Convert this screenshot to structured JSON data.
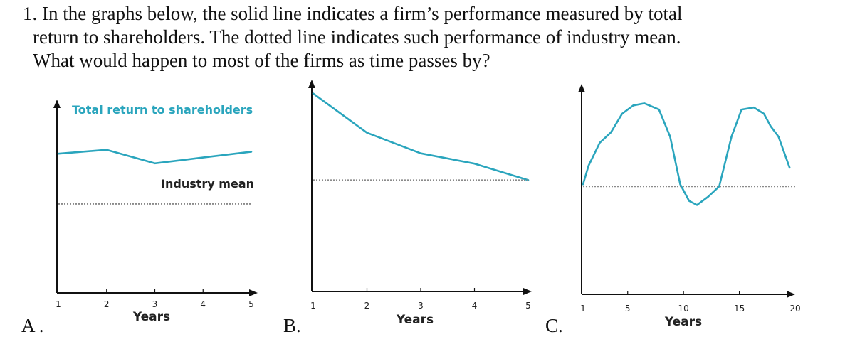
{
  "question": {
    "line1": "1. In the graphs below, the solid line indicates a firm’s performance measured by total",
    "line2": "return to shareholders. The dotted line indicates such performance of industry mean.",
    "line3": "What would happen to most of the firms as time passes by?"
  },
  "colors": {
    "firm_line": "#2aa5bd",
    "mean_line": "#8a8a8a",
    "axis": "#111111"
  },
  "chart_data": [
    {
      "panel_letter": "A .",
      "type": "line",
      "xlabel": "Years",
      "x_ticks": [
        1,
        2,
        3,
        4,
        5
      ],
      "xlim": [
        1,
        5
      ],
      "ylim": [
        0,
        10
      ],
      "series": [
        {
          "name": "Total return to shareholders",
          "style": "solid",
          "x": [
            1,
            2,
            3,
            4,
            5
          ],
          "y": [
            7.2,
            7.4,
            6.7,
            7.0,
            7.3
          ]
        },
        {
          "name": "Industry mean",
          "style": "dotted",
          "x": [
            1,
            5
          ],
          "y": [
            4.6,
            4.6
          ]
        }
      ]
    },
    {
      "panel_letter": "B.",
      "type": "line",
      "xlabel": "Years",
      "x_ticks": [
        1,
        2,
        3,
        4,
        5
      ],
      "xlim": [
        1,
        5
      ],
      "ylim": [
        0,
        10
      ],
      "series": [
        {
          "style": "solid",
          "x": [
            1,
            2,
            3,
            4,
            5
          ],
          "y": [
            9.6,
            7.7,
            6.7,
            6.2,
            5.4
          ]
        },
        {
          "style": "dotted",
          "x": [
            1,
            5
          ],
          "y": [
            5.4,
            5.4
          ]
        }
      ]
    },
    {
      "panel_letter": "C.",
      "type": "line",
      "xlabel": "Years",
      "x_ticks": [
        1,
        5,
        10,
        15,
        20
      ],
      "xlim": [
        1,
        20
      ],
      "ylim": [
        0,
        10
      ],
      "series": [
        {
          "style": "solid",
          "x": [
            1,
            1.5,
            2.5,
            3.5,
            4.5,
            5.5,
            6.5,
            7.8,
            8.8,
            9.7,
            10.5,
            11.2,
            12.2,
            13.2,
            14.3,
            15.2,
            16.3,
            17.2,
            17.8,
            18.5,
            19.5
          ],
          "y": [
            5.3,
            6.2,
            7.3,
            7.8,
            8.7,
            9.1,
            9.2,
            8.9,
            7.6,
            5.3,
            4.5,
            4.3,
            4.7,
            5.2,
            7.6,
            8.9,
            9.0,
            8.7,
            8.1,
            7.6,
            6.1
          ]
        },
        {
          "style": "dotted",
          "x": [
            1,
            20
          ],
          "y": [
            5.2,
            5.2
          ]
        }
      ]
    }
  ]
}
